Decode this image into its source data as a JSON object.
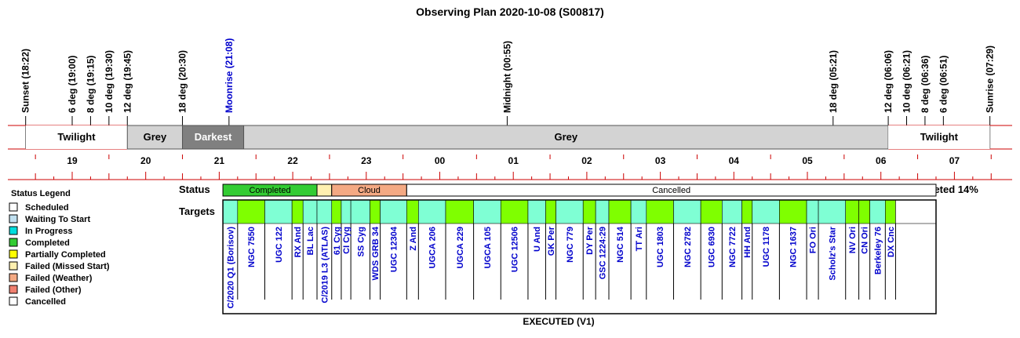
{
  "chart_data": {
    "type": "timeline",
    "title": "Observing Plan 2020-10-08 (S00817)",
    "events": [
      {
        "label": "Sunset (18:22)",
        "hour": 18.367
      },
      {
        "label": "6 deg (19:00)",
        "hour": 19.0
      },
      {
        "label": "8 deg (19:15)",
        "hour": 19.25
      },
      {
        "label": "10 deg (19:30)",
        "hour": 19.5
      },
      {
        "label": "12 deg (19:45)",
        "hour": 19.75
      },
      {
        "label": "18 deg (20:30)",
        "hour": 20.5
      },
      {
        "label": "Moonrise (21:08)",
        "hour": 21.133,
        "color": "#0000cc"
      },
      {
        "label": "Midnight (00:55)",
        "hour": 24.917
      },
      {
        "label": "18 deg (05:21)",
        "hour": 29.35
      },
      {
        "label": "12 deg (06:06)",
        "hour": 30.1
      },
      {
        "label": "10 deg (06:21)",
        "hour": 30.35
      },
      {
        "label": "8 deg (06:36)",
        "hour": 30.6
      },
      {
        "label": "6 deg (06:51)",
        "hour": 30.85
      },
      {
        "label": "Sunrise (07:29)",
        "hour": 31.483
      }
    ],
    "sky_bands": [
      {
        "label": "Twilight",
        "start": 18.367,
        "end": 19.75,
        "color": "#ffffff",
        "text_color": "#000000"
      },
      {
        "label": "Grey",
        "start": 19.75,
        "end": 20.5,
        "color": "#d3d3d3",
        "text_color": "#000000"
      },
      {
        "label": "Darkest",
        "start": 20.5,
        "end": 21.333,
        "color": "#808080",
        "text_color": "#ffffff"
      },
      {
        "label": "Grey",
        "start": 21.333,
        "end": 30.1,
        "color": "#d3d3d3",
        "text_color": "#000000"
      },
      {
        "label": "Twilight",
        "start": 30.1,
        "end": 31.483,
        "color": "#ffffff",
        "text_color": "#000000"
      }
    ],
    "hour_ticks": [
      {
        "label": "19",
        "hour": 19
      },
      {
        "label": "20",
        "hour": 20
      },
      {
        "label": "21",
        "hour": 21
      },
      {
        "label": "22",
        "hour": 22
      },
      {
        "label": "23",
        "hour": 23
      },
      {
        "label": "00",
        "hour": 24
      },
      {
        "label": "01",
        "hour": 25
      },
      {
        "label": "02",
        "hour": 26
      },
      {
        "label": "03",
        "hour": 27
      },
      {
        "label": "04",
        "hour": 28
      },
      {
        "label": "05",
        "hour": 29
      },
      {
        "label": "06",
        "hour": 30
      },
      {
        "label": "07",
        "hour": 31
      }
    ],
    "status_label": "Status",
    "status_segments": [
      {
        "label": "Completed",
        "start": 21.05,
        "end": 22.33,
        "color": "#33cc33"
      },
      {
        "label": "",
        "start": 22.33,
        "end": 22.53,
        "color": "#fff0b0"
      },
      {
        "label": "Cloud",
        "start": 22.53,
        "end": 23.55,
        "color": "#f4a983"
      },
      {
        "label": "Cancelled",
        "start": 23.55,
        "end": 30.75,
        "color": "#ffffff"
      }
    ],
    "completion_text": "Completed 14%",
    "targets_label": "Targets",
    "targets": [
      {
        "name": "C/2020 Q1 (Borisov)",
        "start": 21.05,
        "end": 21.25,
        "color": "#7fffd4"
      },
      {
        "name": "NGC 7550",
        "start": 21.25,
        "end": 21.62,
        "color": "#7fff00"
      },
      {
        "name": "UGC 122",
        "start": 21.62,
        "end": 21.99,
        "color": "#7fffd4"
      },
      {
        "name": "RX And",
        "start": 21.99,
        "end": 22.14,
        "color": "#7fff00"
      },
      {
        "name": "BL Lac",
        "start": 22.14,
        "end": 22.33,
        "color": "#7fffd4"
      },
      {
        "name": "C/2019 L3 (ATLAS)",
        "start": 22.33,
        "end": 22.53,
        "color": "#7fffd4"
      },
      {
        "name": "61 Cyg",
        "start": 22.53,
        "end": 22.66,
        "color": "#7fff00"
      },
      {
        "name": "CI Cyg",
        "start": 22.66,
        "end": 22.79,
        "color": "#7fffd4"
      },
      {
        "name": "SS Cyg",
        "start": 22.79,
        "end": 23.05,
        "color": "#7fffd4"
      },
      {
        "name": "WDS GRB 34",
        "start": 23.05,
        "end": 23.19,
        "color": "#7fff00"
      },
      {
        "name": "UGC 12304",
        "start": 23.19,
        "end": 23.55,
        "color": "#7fffd4"
      },
      {
        "name": "Z And",
        "start": 23.55,
        "end": 23.71,
        "color": "#7fff00"
      },
      {
        "name": "UGCA 206",
        "start": 23.71,
        "end": 24.08,
        "color": "#7fffd4"
      },
      {
        "name": "UGCA 229",
        "start": 24.08,
        "end": 24.46,
        "color": "#7fff00"
      },
      {
        "name": "UGCA 105",
        "start": 24.46,
        "end": 24.83,
        "color": "#7fffd4"
      },
      {
        "name": "UGC 12506",
        "start": 24.83,
        "end": 25.2,
        "color": "#7fff00"
      },
      {
        "name": "U And",
        "start": 25.2,
        "end": 25.44,
        "color": "#7fffd4"
      },
      {
        "name": "GK Per",
        "start": 25.44,
        "end": 25.58,
        "color": "#7fff00"
      },
      {
        "name": "NGC 779",
        "start": 25.58,
        "end": 25.95,
        "color": "#7fffd4"
      },
      {
        "name": "DY Per",
        "start": 25.95,
        "end": 26.12,
        "color": "#7fff00"
      },
      {
        "name": "GSC 1224:29",
        "start": 26.12,
        "end": 26.3,
        "color": "#7fffd4"
      },
      {
        "name": "NGC 514",
        "start": 26.3,
        "end": 26.6,
        "color": "#7fff00"
      },
      {
        "name": "TT Ari",
        "start": 26.6,
        "end": 26.81,
        "color": "#7fffd4"
      },
      {
        "name": "UGC 1803",
        "start": 26.81,
        "end": 27.18,
        "color": "#7fff00"
      },
      {
        "name": "NGC 2782",
        "start": 27.18,
        "end": 27.55,
        "color": "#7fffd4"
      },
      {
        "name": "UGC 6930",
        "start": 27.55,
        "end": 27.84,
        "color": "#7fff00"
      },
      {
        "name": "NGC 7722",
        "start": 27.84,
        "end": 28.11,
        "color": "#7fffd4"
      },
      {
        "name": "HH And",
        "start": 28.11,
        "end": 28.25,
        "color": "#7fff00"
      },
      {
        "name": "UGC 1178",
        "start": 28.25,
        "end": 28.62,
        "color": "#7fffd4"
      },
      {
        "name": "NGC 1637",
        "start": 28.62,
        "end": 28.99,
        "color": "#7fff00"
      },
      {
        "name": "FO Ori",
        "start": 28.99,
        "end": 29.15,
        "color": "#7fffd4"
      },
      {
        "name": "Scholz's Star",
        "start": 29.15,
        "end": 29.52,
        "color": "#7fffd4"
      },
      {
        "name": "NV Ori",
        "start": 29.52,
        "end": 29.7,
        "color": "#7fff00"
      },
      {
        "name": "CN Ori",
        "start": 29.7,
        "end": 29.85,
        "color": "#7fff00"
      },
      {
        "name": "Berkeley 76",
        "start": 29.85,
        "end": 30.06,
        "color": "#7fffd4"
      },
      {
        "name": "DX Cnc",
        "start": 30.06,
        "end": 30.2,
        "color": "#7fff00"
      },
      {
        "name": "",
        "start": 30.2,
        "end": 30.75,
        "color": "#ffffff"
      }
    ],
    "footer": "EXECUTED (V1)",
    "legend": {
      "title": "Status Legend",
      "items": [
        {
          "label": "Scheduled",
          "color": "#ffffff"
        },
        {
          "label": "Waiting To Start",
          "color": "#c0e0f0"
        },
        {
          "label": "In Progress",
          "color": "#00dddd"
        },
        {
          "label": "Completed",
          "color": "#33cc33"
        },
        {
          "label": "Partially Completed",
          "color": "#ffff00"
        },
        {
          "label": "Failed (Missed Start)",
          "color": "#fff0b0"
        },
        {
          "label": "Failed (Weather)",
          "color": "#f4a983"
        },
        {
          "label": "Failed (Other)",
          "color": "#f08070"
        },
        {
          "label": "Cancelled",
          "color": "#ffffff"
        }
      ]
    },
    "colors": {
      "axis_line": "#cc0000",
      "target_label": "#0000cc",
      "event_label": "#000000"
    }
  }
}
